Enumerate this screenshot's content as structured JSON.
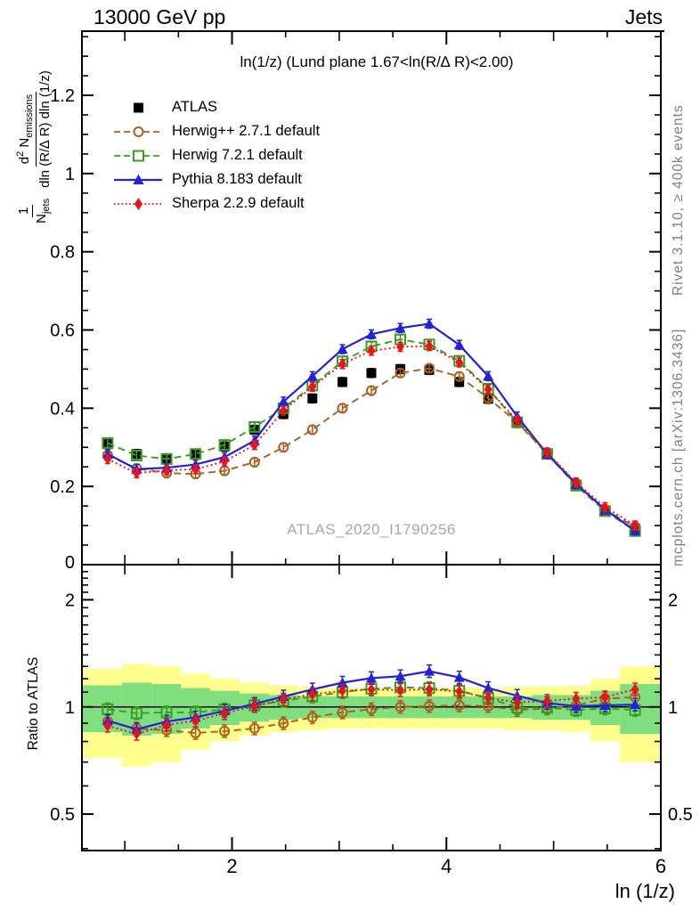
{
  "header": {
    "beam": "13000 GeV pp",
    "analysis_group": "Jets"
  },
  "side_notes": {
    "generator_info": "Rivet 3.1.10, ≥ 400k events",
    "attribution": "mcplots.cern.ch [arXiv:1306.3436]"
  },
  "watermark": "ATLAS_2020_I1790256",
  "ylabel_main": {
    "one": "1",
    "n": "N",
    "jets": "jets",
    "d": "d",
    "two": "2",
    "nem": " N",
    "emissions": "emissions",
    "denominator": "dln (R/∆ R) dln (1/z)"
  },
  "ylabel_ratio": "Ratio to ATLAS",
  "chart_data": {
    "type": "line",
    "title": "ln(1/z) (Lund plane 1.67<ln(R/∆ R)<2.00)",
    "xlabel": "ln (1/z)",
    "ylabel": "(1/N_jets) d²N_emissions / dln(R/∆ R) dln(1/z)",
    "ratio_label": "Ratio to ATLAS",
    "xlim": [
      0.6,
      6.0
    ],
    "ylim_main": [
      0,
      1.364
    ],
    "ylim_ratio": [
      0.395,
      2.51
    ],
    "ratio_scale": "log",
    "grid": false,
    "legend_position": "top-left-inside",
    "axes": {
      "x_labeled": [
        [
          2,
          "2"
        ],
        [
          4,
          "4"
        ],
        [
          6,
          "6"
        ]
      ],
      "x_minor_step": 0.5,
      "y_main_labeled": [
        [
          0,
          "0"
        ],
        [
          0.2,
          "0.2"
        ],
        [
          0.4,
          "0.4"
        ],
        [
          0.6,
          "0.6"
        ],
        [
          0.8,
          "0.8"
        ],
        [
          1.0,
          "1"
        ],
        [
          1.2,
          "1.2"
        ]
      ],
      "y_main_minor_step": 0.05,
      "y_ratio_labeled": [
        [
          0.5,
          "0.5"
        ],
        [
          1,
          "1"
        ],
        [
          2,
          "2"
        ]
      ],
      "y_ratio_minors": [
        0.4,
        0.6,
        0.7,
        0.8,
        0.9,
        1.1,
        1.2,
        1.3,
        1.4,
        1.5,
        1.6,
        1.7,
        1.8,
        1.9,
        2.1,
        2.2,
        2.3,
        2.4
      ]
    },
    "x": [
      0.84,
      1.11,
      1.39,
      1.66,
      1.93,
      2.21,
      2.48,
      2.75,
      3.03,
      3.3,
      3.57,
      3.84,
      4.12,
      4.39,
      4.66,
      4.94,
      5.21,
      5.48,
      5.76
    ],
    "series": [
      {
        "name": "ATLAS",
        "color": "#000000",
        "marker": "square_filled",
        "line": "none",
        "values": [
          0.308,
          0.283,
          0.272,
          0.282,
          0.302,
          0.345,
          0.385,
          0.425,
          0.467,
          0.49,
          0.5,
          0.498,
          0.467,
          0.424,
          0.362,
          0.284,
          0.205,
          0.138,
          0.092
        ],
        "ratio": null
      },
      {
        "name": "Herwig++ 2.7.1 default",
        "color": "#b05d1b",
        "marker": "circle_open",
        "line": "dash",
        "values": [
          0.28,
          0.246,
          0.234,
          0.232,
          0.24,
          0.262,
          0.3,
          0.345,
          0.4,
          0.445,
          0.49,
          0.502,
          0.481,
          0.426,
          0.364,
          0.286,
          0.207,
          0.14,
          0.097
        ],
        "ratio": [
          0.91,
          0.87,
          0.86,
          0.845,
          0.855,
          0.87,
          0.9,
          0.935,
          0.965,
          0.985,
          1.0,
          1.005,
          1.01,
          1.005,
          0.98,
          0.99,
          1.01,
          1.055,
          1.065
        ]
      },
      {
        "name": "Herwig 7.2.1 default",
        "color": "#3a9e1e",
        "marker": "square_open",
        "line": "dash",
        "values": [
          0.311,
          0.279,
          0.27,
          0.283,
          0.306,
          0.352,
          0.4,
          0.458,
          0.52,
          0.558,
          0.576,
          0.563,
          0.521,
          0.45,
          0.364,
          0.283,
          0.202,
          0.137,
          0.086
        ],
        "ratio": [
          0.985,
          0.96,
          0.965,
          0.965,
          0.985,
          1.01,
          1.04,
          1.07,
          1.1,
          1.125,
          1.135,
          1.13,
          1.11,
          1.06,
          0.995,
          0.995,
          0.98,
          0.99,
          0.98
        ]
      },
      {
        "name": "Pythia 8.183 default",
        "color": "#2222dd",
        "marker": "triangle_filled",
        "line": "solid",
        "values": [
          0.283,
          0.244,
          0.248,
          0.256,
          0.275,
          0.317,
          0.417,
          0.482,
          0.551,
          0.589,
          0.605,
          0.616,
          0.562,
          0.482,
          0.379,
          0.283,
          0.206,
          0.141,
          0.087
        ],
        "ratio": [
          0.915,
          0.865,
          0.91,
          0.935,
          0.975,
          1.02,
          1.07,
          1.12,
          1.17,
          1.205,
          1.22,
          1.26,
          1.21,
          1.13,
          1.075,
          1.025,
          1.005,
          1.01,
          1.015
        ]
      },
      {
        "name": "Sherpa 2.2.9 default",
        "color": "#e8131d",
        "marker": "diamond_filled",
        "line": "dot",
        "values": [
          0.27,
          0.234,
          0.241,
          0.244,
          0.264,
          0.306,
          0.394,
          0.455,
          0.513,
          0.547,
          0.557,
          0.559,
          0.517,
          0.448,
          0.369,
          0.287,
          0.21,
          0.147,
          0.1
        ],
        "ratio": [
          0.885,
          0.84,
          0.89,
          0.915,
          0.96,
          1.005,
          1.05,
          1.085,
          1.11,
          1.12,
          1.115,
          1.12,
          1.105,
          1.06,
          1.03,
          1.04,
          1.055,
          1.065,
          1.12
        ]
      }
    ],
    "uncertainty_bands": [
      {
        "name": "data-uncertainty-outer",
        "color": "#ffff8d",
        "lo": [
          0.72,
          0.68,
          0.7,
          0.76,
          0.8,
          0.83,
          0.85,
          0.86,
          0.87,
          0.87,
          0.87,
          0.87,
          0.87,
          0.87,
          0.86,
          0.86,
          0.85,
          0.8,
          0.7
        ],
        "hi": [
          1.28,
          1.32,
          1.3,
          1.24,
          1.2,
          1.17,
          1.15,
          1.14,
          1.13,
          1.13,
          1.13,
          1.13,
          1.13,
          1.13,
          1.14,
          1.14,
          1.15,
          1.2,
          1.3
        ]
      },
      {
        "name": "data-uncertainty-inner",
        "color": "#7fdf7f",
        "lo": [
          0.85,
          0.83,
          0.84,
          0.87,
          0.89,
          0.91,
          0.92,
          0.93,
          0.93,
          0.93,
          0.93,
          0.93,
          0.93,
          0.93,
          0.93,
          0.92,
          0.92,
          0.89,
          0.84
        ],
        "hi": [
          1.15,
          1.17,
          1.16,
          1.13,
          1.11,
          1.09,
          1.08,
          1.07,
          1.07,
          1.07,
          1.07,
          1.07,
          1.07,
          1.07,
          1.07,
          1.08,
          1.08,
          1.11,
          1.16
        ]
      }
    ]
  }
}
